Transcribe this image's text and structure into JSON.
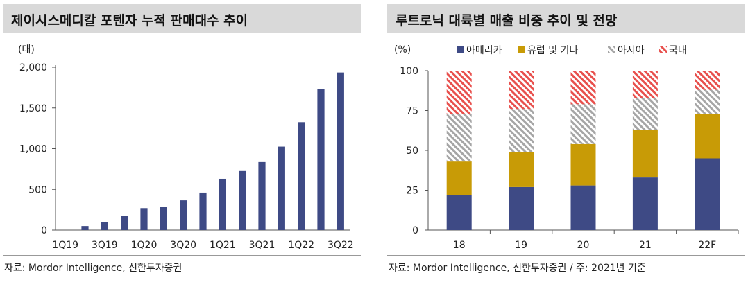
{
  "left": {
    "title": "제이시스메디칼 포텐자 누적 판매대수 추이",
    "source": "자료: Mordor Intelligence, 신한투자증권",
    "chart_data": {
      "type": "bar",
      "unit_label": "(대)",
      "categories": [
        "1Q19",
        "2Q19",
        "3Q19",
        "4Q19",
        "1Q20",
        "2Q20",
        "3Q20",
        "4Q20",
        "1Q21",
        "2Q21",
        "3Q21",
        "4Q21",
        "1Q22",
        "2Q22",
        "3Q22"
      ],
      "x_tick_labels": [
        "1Q19",
        "3Q19",
        "1Q20",
        "3Q20",
        "1Q21",
        "3Q21",
        "1Q22",
        "3Q22"
      ],
      "values": [
        0,
        50,
        95,
        175,
        270,
        285,
        365,
        460,
        630,
        725,
        835,
        1025,
        1325,
        1735,
        1935
      ],
      "ylim": [
        0,
        2000
      ],
      "yticks": [
        0,
        500,
        1000,
        1500,
        2000
      ],
      "ytick_labels": [
        "0",
        "500",
        "1,000",
        "1,500",
        "2,000"
      ],
      "color": "#3e4a85"
    }
  },
  "right": {
    "title": "루트로닉 대륙별 매출 비중 추이 및 전망",
    "source": "자료: Mordor Intelligence, 신한투자증권 / 주: 2021년 기준",
    "chart_data": {
      "type": "bar",
      "stacked": true,
      "unit_label": "(%)",
      "categories": [
        "18",
        "19",
        "20",
        "21",
        "22F"
      ],
      "series": [
        {
          "name": "아메리카",
          "values": [
            22,
            27,
            28,
            33,
            45
          ],
          "color": "#3e4a85",
          "pattern": "solid"
        },
        {
          "name": "유럽 및 기타",
          "values": [
            21,
            22,
            26,
            30,
            28
          ],
          "color": "#c89b06",
          "pattern": "solid"
        },
        {
          "name": "아시아",
          "values": [
            30,
            27,
            25,
            20,
            15
          ],
          "color": "#a6a6a6",
          "pattern": "hatch"
        },
        {
          "name": "국내",
          "values": [
            27,
            24,
            21,
            17,
            12
          ],
          "color": "#e8504d",
          "pattern": "hatch"
        }
      ],
      "ylim": [
        0,
        100
      ],
      "yticks": [
        0,
        25,
        50,
        75,
        100
      ],
      "ytick_labels": [
        "0",
        "25",
        "50",
        "75",
        "100"
      ],
      "legend_position": "top"
    }
  }
}
